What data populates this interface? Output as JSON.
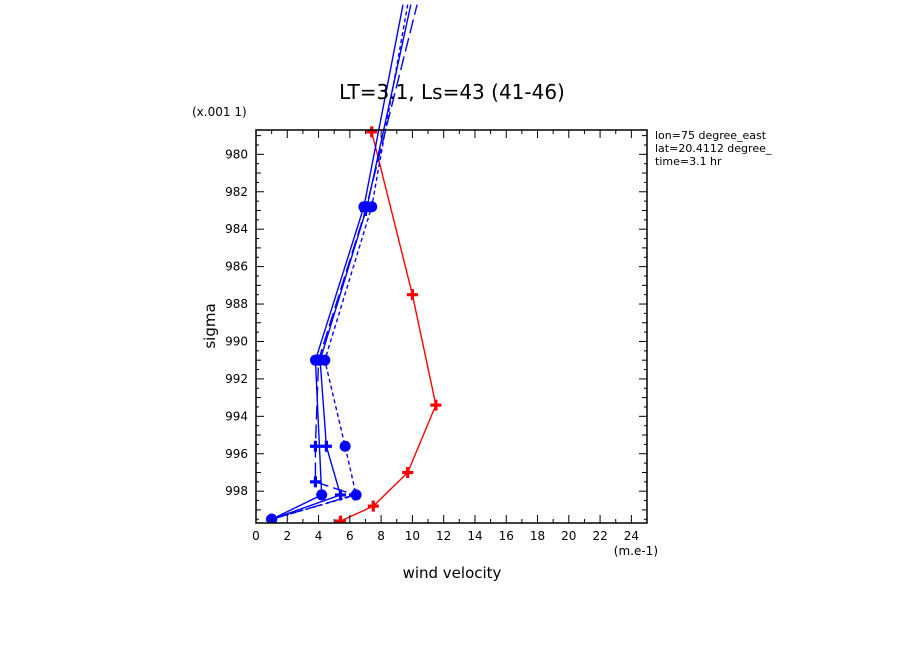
{
  "chart_data": {
    "type": "line",
    "title": "LT=3.1, Ls=43 (41-46)",
    "xlabel": "wind velocity",
    "ylabel": "sigma",
    "x_unit": "(m.e-1)",
    "y_scale_label": "(x.001 1)",
    "xlim": [
      0,
      25
    ],
    "ylim": [
      999.7,
      978.7
    ],
    "x_ticks": [
      "0",
      "2",
      "4",
      "6",
      "8",
      "10",
      "12",
      "14",
      "16",
      "18",
      "20",
      "22",
      "24"
    ],
    "y_ticks": [
      "980",
      "982",
      "984",
      "986",
      "988",
      "990",
      "992",
      "994",
      "996",
      "998"
    ],
    "annotations": [
      "lon=75 degree_east",
      "lat=20.4112 degree_",
      "time=3.1 hr"
    ],
    "series": [
      {
        "color": "#ff0000",
        "dash": "solid",
        "marker": "plus",
        "x": [
          7.4,
          10.0,
          11.5,
          9.7,
          7.5,
          5.4
        ],
        "y": [
          978.8,
          987.5,
          993.4,
          997.0,
          998.8,
          999.6
        ]
      },
      {
        "color": "#0000ff",
        "dash": "solid",
        "marker": "dot",
        "x": [
          1.0,
          4.2,
          3.8,
          6.9,
          9.4
        ],
        "y": [
          999.5,
          998.2,
          991.0,
          982.8,
          972.0
        ]
      },
      {
        "color": "#0000ff",
        "dash": "solid",
        "marker": "plus",
        "x": [
          1.0,
          5.4,
          4.5,
          4.1,
          7.1,
          9.9
        ],
        "y": [
          999.5,
          998.2,
          995.6,
          991.0,
          982.8,
          972.0
        ]
      },
      {
        "color": "#0000ff",
        "dash": "dashed",
        "marker": "dot",
        "x": [
          1.0,
          6.4,
          5.7,
          4.4,
          7.4,
          9.7
        ],
        "y": [
          999.5,
          998.2,
          995.6,
          991.0,
          982.8,
          972.0
        ]
      },
      {
        "color": "#0000ff",
        "dash": "longdash",
        "marker": "plus",
        "x": [
          1.0,
          6.3,
          3.8,
          3.8,
          4.0,
          7.0,
          10.3
        ],
        "y": [
          999.5,
          998.2,
          997.5,
          995.6,
          991.0,
          983.0,
          972.0
        ]
      }
    ]
  }
}
